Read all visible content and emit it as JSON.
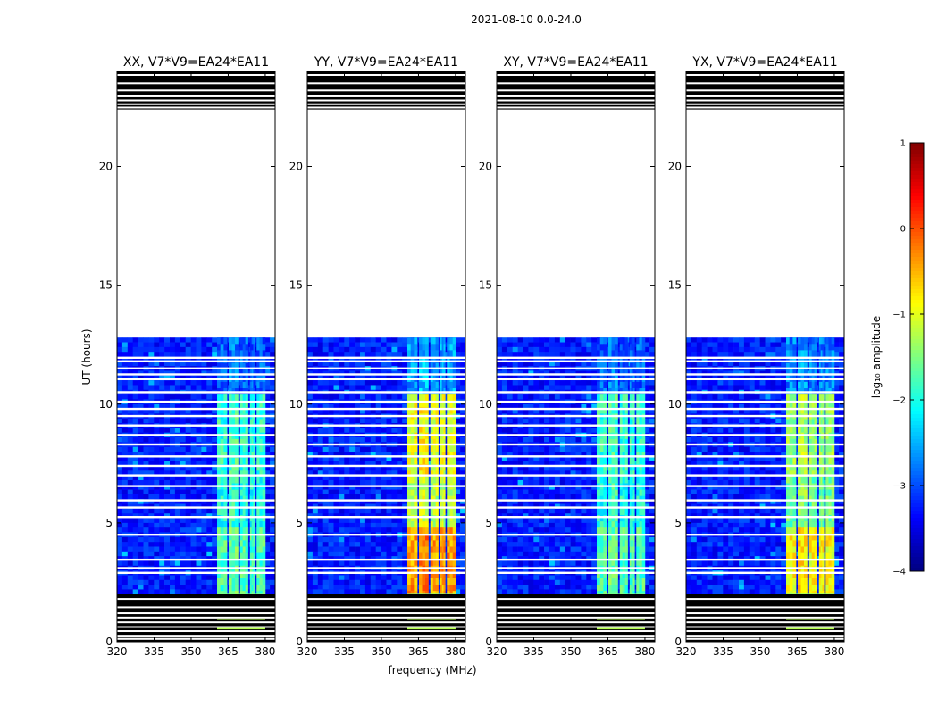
{
  "chart_data": {
    "type": "heatmap",
    "suptitle": "2021-08-10 0.0-24.0",
    "panels": [
      {
        "title": "XX, V7*V9=EA24*EA11",
        "level": [
          0.22,
          0.45,
          0.58,
          0.42,
          0.4
        ]
      },
      {
        "title": "YY, V7*V9=EA24*EA11",
        "level": [
          0.28,
          0.72,
          0.62,
          0.6,
          0.55
        ]
      },
      {
        "title": "XY, V7*V9=EA24*EA11",
        "level": [
          0.22,
          0.45,
          0.5,
          0.42,
          0.4
        ]
      },
      {
        "title": "YX, V7*V9=EA24*EA11",
        "level": [
          0.25,
          0.62,
          0.56,
          0.52,
          0.48
        ]
      }
    ],
    "xlabel": "frequency (MHz)",
    "ylabel": "UT (hours)",
    "xlim": [
      320,
      384
    ],
    "ylim": [
      0,
      24
    ],
    "xticks": [
      320,
      335,
      350,
      365,
      380
    ],
    "yticks": [
      0,
      5,
      10,
      15,
      20
    ],
    "colorbar": {
      "label": "log₁₀ amplitude",
      "range": [
        -4,
        1
      ],
      "ticks": [
        1,
        0,
        -1,
        -2,
        -3,
        -4
      ],
      "ticklabels": [
        "1",
        "0",
        "−1",
        "−2",
        "−3",
        "−4"
      ],
      "colormap": "jet"
    },
    "data_coverage": [
      [
        0,
        12.8
      ],
      [
        22.4,
        24
      ]
    ],
    "rfi_band_mhz": [
      360.5,
      380
    ],
    "band_segments_mhz": [
      [
        360.5,
        364.5
      ],
      [
        365.2,
        369
      ],
      [
        369.8,
        373
      ],
      [
        373.8,
        375.8
      ],
      [
        376.5,
        380
      ]
    ],
    "empty_hours": [
      12.8,
      22.4
    ],
    "flagged_rows_hours": [
      2.9,
      3.1,
      3.45,
      4.5,
      5.25,
      5.65,
      5.95,
      6.55,
      7.0,
      7.4,
      7.8,
      8.3,
      8.7,
      9.1,
      9.5,
      9.8,
      10.1,
      10.5,
      11.05,
      11.25,
      11.5,
      11.8,
      11.95
    ],
    "black_rows_hours": [
      1.9,
      1.65,
      1.55,
      1.35,
      1.1,
      0.95,
      0.7,
      0.55,
      0.35,
      0.1,
      23.95,
      23.75,
      23.6,
      23.35,
      23.05,
      22.85,
      22.7,
      22.55
    ]
  }
}
